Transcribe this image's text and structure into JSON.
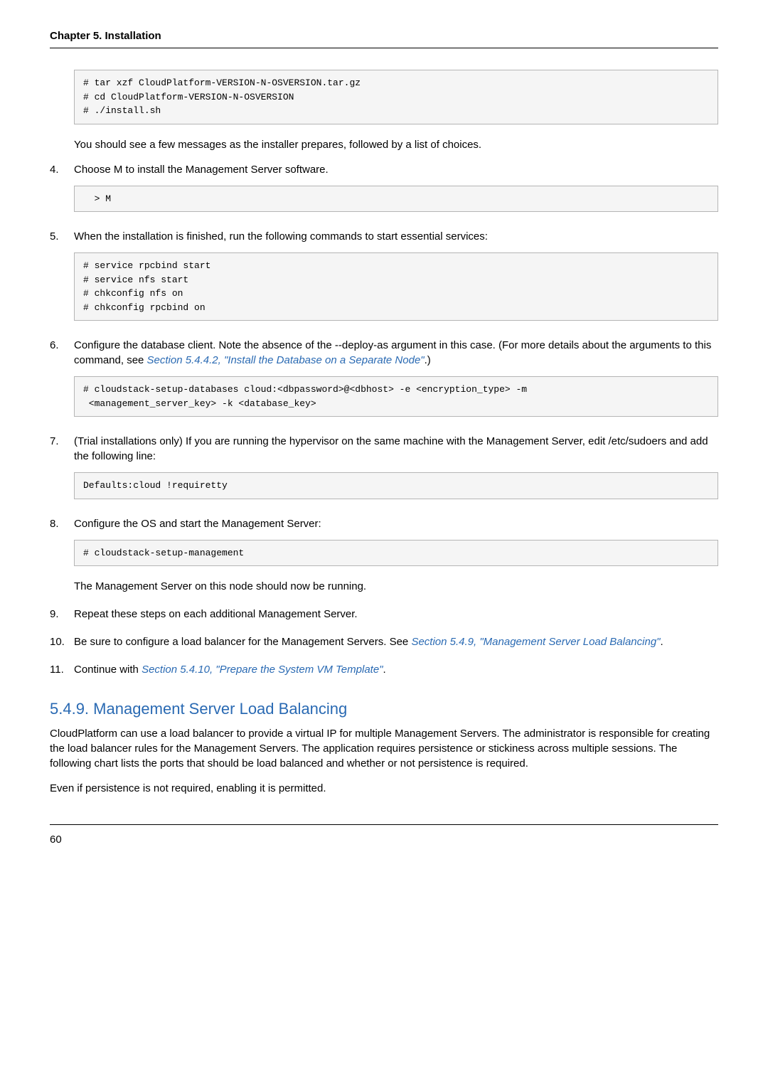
{
  "header": {
    "chapter_title": "Chapter 5. Installation"
  },
  "steps": {
    "code1": "# tar xzf CloudPlatform-VERSION-N-OSVERSION.tar.gz\n# cd CloudPlatform-VERSION-N-OSVERSION\n# ./install.sh",
    "after_code1": "You should see a few messages as the installer prepares, followed by a list of choices.",
    "s4_num": "4.",
    "s4_text": "Choose M to install the Management Server software.",
    "s4_code": "  > M",
    "s5_num": "5.",
    "s5_text": "When the installation is finished, run the following commands to start essential services:",
    "s5_code": "# service rpcbind start\n# service nfs start\n# chkconfig nfs on\n# chkconfig rpcbind on",
    "s6_num": "6.",
    "s6_text_a": "Configure the database client. Note the absence of the --deploy-as argument in this case. (For more details about the arguments to this command, see ",
    "s6_link": "Section 5.4.4.2, \"Install the Database on a Separate Node\"",
    "s6_text_b": ".)",
    "s6_code": "# cloudstack-setup-databases cloud:<dbpassword>@<dbhost> -e <encryption_type> -m\n <management_server_key> -k <database_key>",
    "s7_num": "7.",
    "s7_text": "(Trial installations only) If you are running the hypervisor on the same machine with the Management Server, edit /etc/sudoers and add the following line:",
    "s7_code": "Defaults:cloud !requiretty",
    "s8_num": "8.",
    "s8_text": "Configure the OS and start the Management Server:",
    "s8_code": "# cloudstack-setup-management",
    "s8_after": "The Management Server on this node should now be running.",
    "s9_num": "9.",
    "s9_text": "Repeat these steps on each additional Management Server.",
    "s10_num": "10.",
    "s10_text_a": "Be sure to configure a load balancer for the Management Servers. See ",
    "s10_link": "Section 5.4.9, \"Management Server Load Balancing\"",
    "s10_text_b": ".",
    "s11_num": "11.",
    "s11_text_a": "Continue with ",
    "s11_link": "Section 5.4.10, \"Prepare the System VM Template\"",
    "s11_text_b": "."
  },
  "section": {
    "heading": "5.4.9. Management Server Load Balancing",
    "p1": "CloudPlatform can use a load balancer to provide a virtual IP for multiple Management Servers. The administrator is responsible for creating the load balancer rules for the Management Servers. The application requires persistence or stickiness across multiple sessions. The following chart lists the ports that should be load balanced and whether or not persistence is required.",
    "p2": "Even if persistence is not required, enabling it is permitted."
  },
  "footer": {
    "page": "60"
  }
}
